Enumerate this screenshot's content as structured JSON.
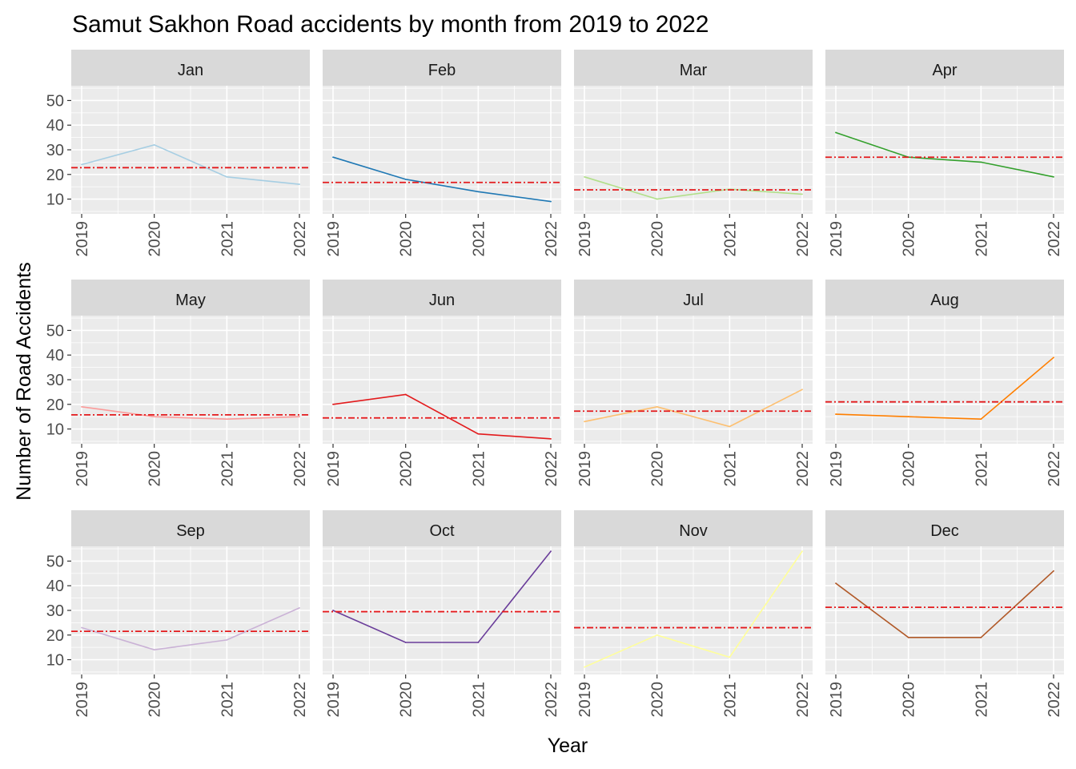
{
  "chart_data": {
    "type": "line",
    "title": "Samut Sakhon Road accidents by month from 2019 to 2022",
    "xlabel": "Year",
    "ylabel": "Number of Road Accidents",
    "x": [
      "2019",
      "2020",
      "2021",
      "2022"
    ],
    "y_ticks": [
      10,
      20,
      30,
      40,
      50
    ],
    "ylim": [
      4,
      56
    ],
    "grid": true,
    "reference_line": {
      "style": "dash-dot",
      "color": "#e41a1c"
    },
    "panels": [
      {
        "name": "Jan",
        "color": "#a6cee3",
        "values": [
          24,
          32,
          19,
          16
        ],
        "mean": 22.75
      },
      {
        "name": "Feb",
        "color": "#1f78b4",
        "values": [
          27,
          18,
          13,
          9
        ],
        "mean": 16.75
      },
      {
        "name": "Mar",
        "color": "#b2df8a",
        "values": [
          19,
          10,
          14,
          12
        ],
        "mean": 13.75
      },
      {
        "name": "Apr",
        "color": "#33a02c",
        "values": [
          37,
          27,
          25,
          19
        ],
        "mean": 27
      },
      {
        "name": "May",
        "color": "#fb9a99",
        "values": [
          19,
          15,
          14,
          15
        ],
        "mean": 15.75
      },
      {
        "name": "Jun",
        "color": "#e31a1c",
        "values": [
          20,
          24,
          8,
          6
        ],
        "mean": 14.5
      },
      {
        "name": "Jul",
        "color": "#fdbf6f",
        "values": [
          13,
          19,
          11,
          26
        ],
        "mean": 17.25
      },
      {
        "name": "Aug",
        "color": "#ff7f00",
        "values": [
          16,
          15,
          14,
          39
        ],
        "mean": 21
      },
      {
        "name": "Sep",
        "color": "#cab2d6",
        "values": [
          23,
          14,
          18,
          31
        ],
        "mean": 21.5
      },
      {
        "name": "Oct",
        "color": "#6a3d9a",
        "values": [
          30,
          17,
          17,
          54
        ],
        "mean": 29.5
      },
      {
        "name": "Nov",
        "color": "#ffff99",
        "values": [
          7,
          20,
          11,
          54
        ],
        "mean": 23
      },
      {
        "name": "Dec",
        "color": "#b15928",
        "values": [
          41,
          19,
          19,
          46
        ],
        "mean": 31.25
      }
    ]
  }
}
